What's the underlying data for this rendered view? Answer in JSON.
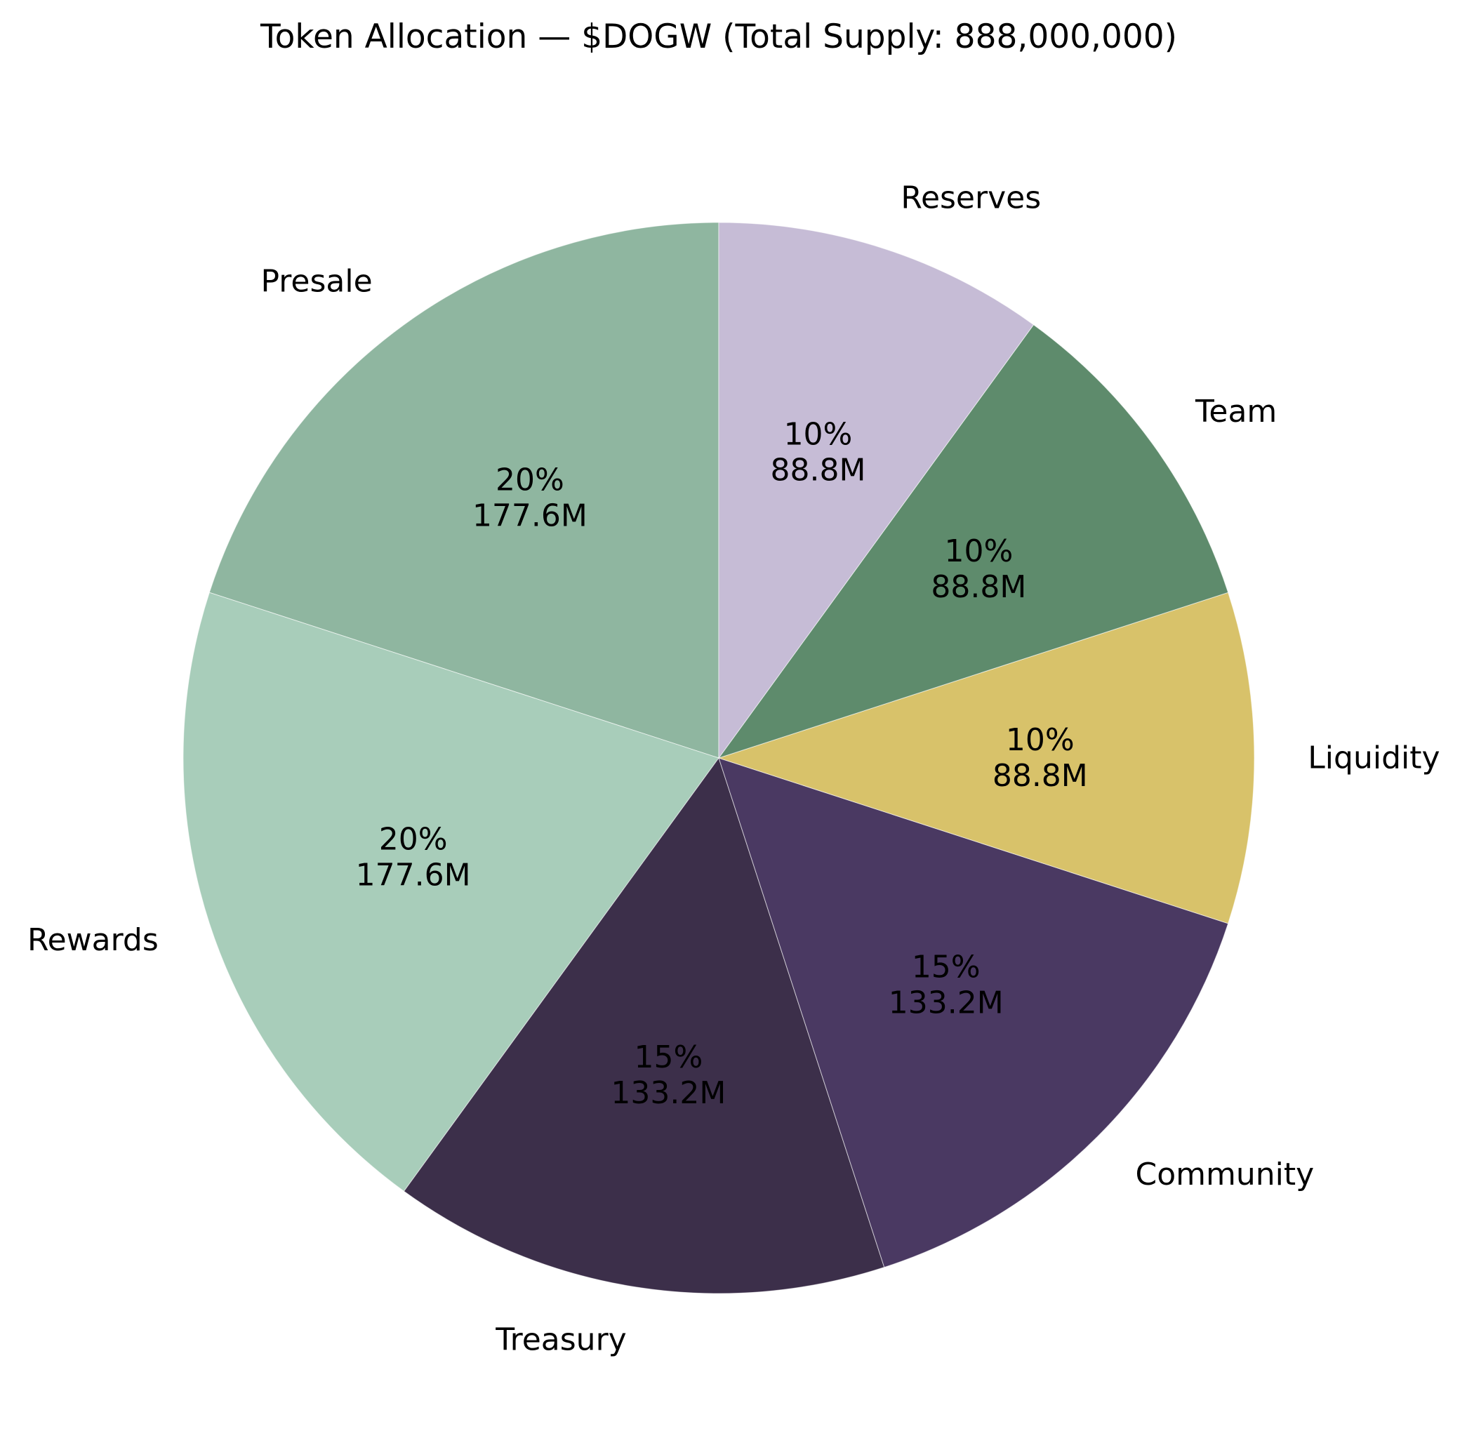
{
  "chart_data": {
    "type": "pie",
    "title": "Token Allocation — $DOGW (Total Supply: 888,000,000)",
    "total_supply": 888000000,
    "start_angle_deg": 90,
    "direction": "counterclockwise",
    "label_distance": 1.1,
    "pct_distance": 0.6,
    "legend": "none",
    "categories": [
      "Presale",
      "Rewards",
      "Treasury",
      "Community",
      "Liquidity",
      "Team",
      "Reserves"
    ],
    "values": [
      20,
      20,
      15,
      15,
      10,
      10,
      10
    ],
    "amounts": [
      177600000,
      177600000,
      133200000,
      133200000,
      88800000,
      88800000,
      88800000
    ],
    "slices": [
      {
        "label": "Presale",
        "percent": 20,
        "pct_text": "20%",
        "amount_text": "177.6M",
        "color": "#8FB6A0"
      },
      {
        "label": "Rewards",
        "percent": 20,
        "pct_text": "20%",
        "amount_text": "177.6M",
        "color": "#A8CDBA"
      },
      {
        "label": "Treasury",
        "percent": 15,
        "pct_text": "15%",
        "amount_text": "133.2M",
        "color": "#3C2F4A"
      },
      {
        "label": "Community",
        "percent": 15,
        "pct_text": "15%",
        "amount_text": "133.2M",
        "color": "#4A3962"
      },
      {
        "label": "Liquidity",
        "percent": 10,
        "pct_text": "10%",
        "amount_text": "88.8M",
        "color": "#D8C26A"
      },
      {
        "label": "Team",
        "percent": 10,
        "pct_text": "10%",
        "amount_text": "88.8M",
        "color": "#5E8B6C"
      },
      {
        "label": "Reserves",
        "percent": 10,
        "pct_text": "10%",
        "amount_text": "88.8M",
        "color": "#C6BCD6"
      }
    ]
  }
}
